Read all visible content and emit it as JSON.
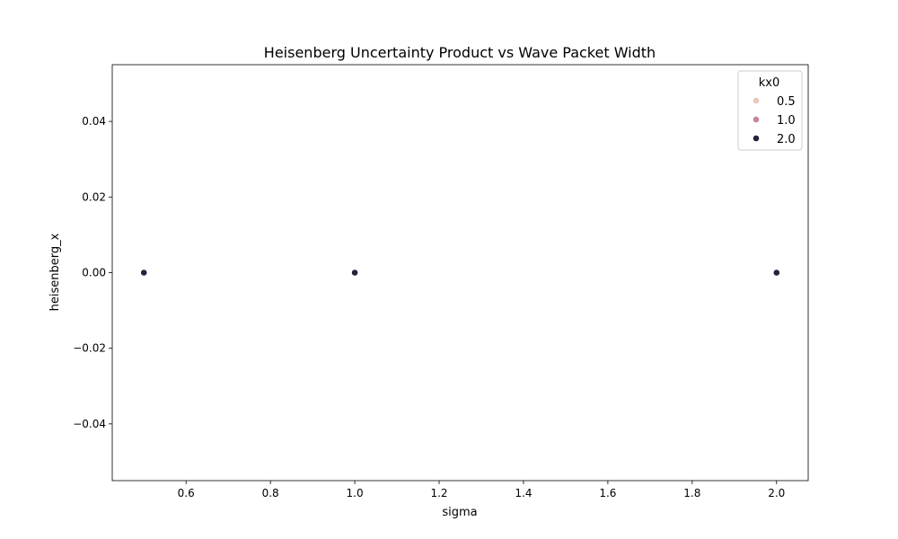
{
  "chart_data": {
    "type": "scatter",
    "title": "Heisenberg Uncertainty Product vs Wave Packet Width",
    "xlabel": "sigma",
    "ylabel": "heisenberg_x",
    "xlim": [
      0.425,
      2.075
    ],
    "ylim": [
      -0.055,
      0.055
    ],
    "xticks": [
      0.6,
      0.8,
      1.0,
      1.2,
      1.4,
      1.6,
      1.8,
      2.0
    ],
    "xtick_labels": [
      "0.6",
      "0.8",
      "1.0",
      "1.2",
      "1.4",
      "1.6",
      "1.8",
      "2.0"
    ],
    "yticks": [
      -0.04,
      -0.02,
      0.0,
      0.02,
      0.04
    ],
    "ytick_labels": [
      "−0.04",
      "−0.02",
      "0.00",
      "0.02",
      "0.04"
    ],
    "grid": false,
    "legend": {
      "title": "kx0",
      "placement": "top-right",
      "entries": [
        {
          "label": "0.5",
          "color": "#ebc6bb"
        },
        {
          "label": "1.0",
          "color": "#c3879a"
        },
        {
          "label": "2.0",
          "color": "#28213d"
        }
      ]
    },
    "series": [
      {
        "name": "0.5",
        "color": "#ebc6bb",
        "x": [
          0.5,
          1.0,
          2.0
        ],
        "y": [
          0.0,
          0.0,
          0.0
        ]
      },
      {
        "name": "1.0",
        "color": "#c3879a",
        "x": [
          0.5,
          1.0,
          2.0
        ],
        "y": [
          0.0,
          0.0,
          0.0
        ]
      },
      {
        "name": "2.0",
        "color": "#28213d",
        "x": [
          0.5,
          1.0,
          2.0
        ],
        "y": [
          0.0,
          0.0,
          0.0
        ]
      }
    ]
  }
}
